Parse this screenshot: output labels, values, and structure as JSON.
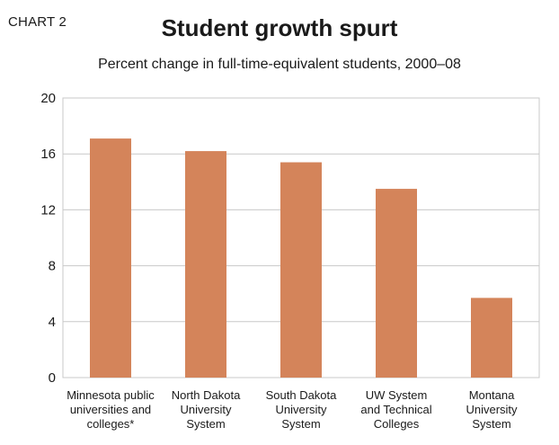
{
  "chart_label": "CHART 2",
  "chart_data": {
    "type": "bar",
    "title": "Student growth spurt",
    "subtitle": "Percent change in full-time-equivalent students, 2000–08",
    "categories": [
      [
        "Minnesota public",
        "universities and",
        "colleges*"
      ],
      [
        "North Dakota",
        "University",
        "System"
      ],
      [
        "South Dakota",
        "University",
        "System"
      ],
      [
        "UW System",
        "and Technical",
        "Colleges"
      ],
      [
        "Montana",
        "University",
        "System"
      ]
    ],
    "values": [
      17.1,
      16.2,
      15.4,
      13.5,
      5.7
    ],
    "ylim": [
      0,
      20
    ],
    "yticks": [
      0,
      4,
      8,
      12,
      16,
      20
    ],
    "grid": true,
    "bar_color": "#d4845a",
    "grid_color": "#c8c8c8"
  }
}
